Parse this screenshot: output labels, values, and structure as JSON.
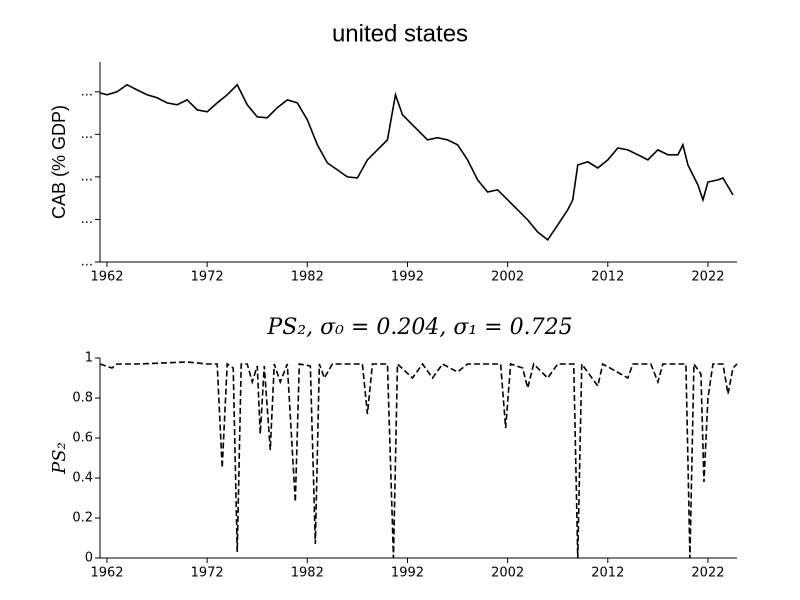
{
  "chart_data": [
    {
      "type": "line",
      "title": "united states",
      "ylabel": "CAB (% GDP)",
      "color": "#000000",
      "linestyle": "solid",
      "xlim": [
        1961.3,
        2024.9
      ],
      "xticks": [
        1962,
        1972,
        1982,
        1992,
        2002,
        2012,
        2022
      ],
      "ylim": [
        -8,
        1.4
      ],
      "yticks": [
        {
          "value": 0,
          "label": "..."
        },
        {
          "value": -2,
          "label": "..."
        },
        {
          "value": -4,
          "label": "..."
        },
        {
          "value": -6,
          "label": "..."
        },
        {
          "value": -8,
          "label": "..."
        }
      ],
      "x": [
        1961.3,
        1962,
        1963,
        1964,
        1965,
        1966,
        1967,
        1968,
        1969,
        1970,
        1971,
        1972,
        1973,
        1974,
        1975,
        1976,
        1977,
        1978,
        1979,
        1980,
        1981,
        1982,
        1983,
        1984,
        1985,
        1986,
        1987,
        1988,
        1989,
        1990,
        1990.8,
        1991.5,
        1992,
        1993,
        1994,
        1995,
        1996,
        1997,
        1998,
        1999,
        2000,
        2001,
        2002,
        2003,
        2004,
        2005,
        2006,
        2007,
        2008,
        2008.5,
        2009,
        2010,
        2011,
        2012,
        2013,
        2014,
        2015,
        2016,
        2017,
        2018,
        2019,
        2019.5,
        2020,
        2021,
        2021.5,
        2022,
        2023,
        2023.5,
        2024.5
      ],
      "values": [
        -0.05,
        -0.14,
        0,
        0.33,
        0.09,
        -0.14,
        -0.28,
        -0.52,
        -0.61,
        -0.38,
        -0.85,
        -0.94,
        -0.52,
        -0.14,
        0.33,
        -0.61,
        -1.18,
        -1.22,
        -0.75,
        -0.38,
        -0.52,
        -1.32,
        -2.49,
        -3.34,
        -3.67,
        -4,
        -4.05,
        -3.2,
        -2.73,
        -2.26,
        -0.14,
        -1.08,
        -1.32,
        -1.79,
        -2.26,
        -2.16,
        -2.26,
        -2.49,
        -3.2,
        -4.14,
        -4.71,
        -4.61,
        -5.08,
        -5.55,
        -6.02,
        -6.59,
        -6.96,
        -6.26,
        -5.55,
        -5.08,
        -3.44,
        -3.29,
        -3.58,
        -3.2,
        -2.64,
        -2.73,
        -2.96,
        -3.2,
        -2.73,
        -2.96,
        -2.96,
        -2.49,
        -3.44,
        -4.38,
        -5.08,
        -4.24,
        -4.14,
        -4.05,
        -4.85
      ]
    },
    {
      "type": "line",
      "title": "PS₂, σ₀ = 0.204, σ₁ = 0.725",
      "ylabel": "PS₂",
      "color": "#000000",
      "linestyle": "dashed",
      "xlim": [
        1961.3,
        2024.9
      ],
      "xticks": [
        1962,
        1972,
        1982,
        1992,
        2002,
        2012,
        2022
      ],
      "ylim": [
        0,
        1
      ],
      "yticks": [
        0,
        0.2,
        0.4,
        0.6,
        0.8,
        1
      ],
      "x": [
        1961.3,
        1962.5,
        1963,
        1965,
        1970,
        1972,
        1973,
        1973.5,
        1974,
        1974.6,
        1975,
        1975.4,
        1976,
        1976.5,
        1977,
        1977.3,
        1977.7,
        1978.3,
        1978.7,
        1979.3,
        1980,
        1980.8,
        1981.2,
        1982.3,
        1982.8,
        1983.2,
        1983.7,
        1984.5,
        1987.5,
        1988,
        1988.5,
        1990,
        1990.6,
        1991,
        1992.5,
        1993.5,
        1994.5,
        1995.5,
        1997,
        1998,
        2001.3,
        2001.8,
        2002.3,
        2003.5,
        2004,
        2004.6,
        2006,
        2007,
        2008.6,
        2009,
        2009.4,
        2011,
        2011.5,
        2014,
        2014.5,
        2016.3,
        2017,
        2017.5,
        2019.8,
        2020.2,
        2020.6,
        2021.3,
        2021.6,
        2022,
        2022.5,
        2023.5,
        2024,
        2024.5,
        2024.9
      ],
      "values": [
        0.97,
        0.95,
        0.97,
        0.97,
        0.98,
        0.97,
        0.97,
        0.45,
        0.97,
        0.95,
        0.03,
        0.97,
        0.97,
        0.88,
        0.96,
        0.62,
        0.96,
        0.54,
        0.97,
        0.88,
        0.97,
        0.28,
        0.97,
        0.96,
        0.07,
        0.97,
        0.9,
        0.97,
        0.97,
        0.72,
        0.97,
        0.97,
        0,
        0.97,
        0.9,
        0.97,
        0.9,
        0.97,
        0.93,
        0.97,
        0.97,
        0.65,
        0.97,
        0.95,
        0.85,
        0.97,
        0.9,
        0.97,
        0.97,
        0,
        0.97,
        0.86,
        0.97,
        0.9,
        0.97,
        0.97,
        0.88,
        0.97,
        0.97,
        0,
        0.97,
        0.92,
        0.38,
        0.8,
        0.97,
        0.97,
        0.82,
        0.95,
        0.97
      ]
    }
  ]
}
